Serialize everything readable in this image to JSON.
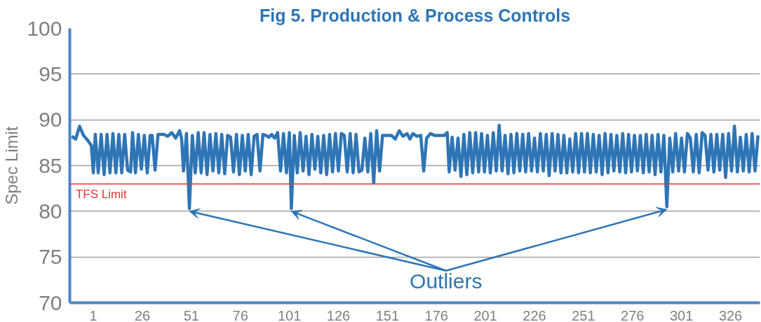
{
  "chart_data": {
    "type": "line",
    "title": "Fig 5. Production & Process Controls",
    "ylabel": "Spec Limit",
    "xlim": [
      -11,
      341
    ],
    "xticks": [
      1,
      26,
      51,
      76,
      101,
      126,
      151,
      176,
      201,
      226,
      251,
      276,
      301,
      326
    ],
    "ylim": [
      70,
      100
    ],
    "yticks": [
      70,
      75,
      80,
      85,
      90,
      95,
      100
    ],
    "grid": "y",
    "marker": "none",
    "line_style": "solid",
    "ref_lines": [
      {
        "axis": "y",
        "value": 83,
        "label": "TFS Limit",
        "color": "#ee3333"
      }
    ],
    "annotations": [
      {
        "text": "Outliers",
        "x": 102,
        "y": 80.3
      }
    ],
    "series": [
      {
        "color": "#2e75b6",
        "x": [
          -10,
          -8,
          -6,
          -4,
          -2,
          0,
          1,
          2,
          3.5,
          5,
          6.5,
          8,
          9.5,
          11,
          12.5,
          14,
          15.5,
          17,
          18.5,
          20,
          21,
          22.5,
          24,
          25.5,
          27,
          28.5,
          30,
          31,
          32.5,
          34,
          35,
          37,
          39,
          41,
          43,
          45,
          46,
          47,
          48.5,
          50,
          51.5,
          53,
          54.5,
          56,
          57.5,
          59,
          60.5,
          62,
          63.5,
          65,
          66.5,
          68,
          69.5,
          71,
          72.5,
          74,
          75.5,
          77,
          78.5,
          80,
          81.5,
          83,
          84.5,
          86,
          87.5,
          89,
          90.5,
          92,
          93.5,
          95,
          96.5,
          98,
          99.5,
          101,
          102,
          103.5,
          105,
          106.5,
          108,
          109.5,
          111,
          112.5,
          114,
          115.5,
          117,
          118.5,
          120,
          121.5,
          123,
          124.5,
          126,
          127.5,
          129,
          130.5,
          132,
          133.5,
          135,
          136.5,
          138,
          139.5,
          141,
          142.5,
          144,
          145.5,
          147,
          148.5,
          150,
          153,
          155,
          157,
          159,
          161,
          162.5,
          164,
          166,
          168,
          169.5,
          171,
          173,
          175,
          178,
          180,
          181.5,
          182.5,
          184,
          185.5,
          187,
          188.5,
          190,
          191.5,
          193,
          194.5,
          196,
          197.5,
          199,
          200.5,
          202,
          203.5,
          205,
          206.5,
          208,
          209.5,
          211,
          212.5,
          214,
          215.5,
          217,
          218.5,
          220,
          221.5,
          223,
          224.5,
          226,
          227.5,
          229,
          230.5,
          232,
          233.5,
          235,
          236.5,
          238,
          239.5,
          241,
          242.5,
          244,
          245.5,
          247,
          248.5,
          250,
          251.5,
          253,
          254.5,
          256,
          257.5,
          259,
          260.5,
          262,
          263.5,
          265,
          266.5,
          268,
          269.5,
          271,
          272.5,
          274,
          275.5,
          277,
          278.5,
          280,
          281.5,
          283,
          284.5,
          286,
          287.5,
          289,
          290.5,
          292,
          293.5,
          295,
          296.5,
          298,
          299.5,
          301,
          302.5,
          304,
          305.5,
          307,
          308.5,
          310,
          311.5,
          313,
          314.5,
          316,
          317.5,
          319,
          320.5,
          322,
          323.5,
          325,
          326.5,
          328,
          329.5,
          331,
          332.5,
          334,
          335.5,
          337,
          338.5,
          340
        ],
        "values": [
          88.2,
          87.9,
          89.3,
          88.3,
          87.8,
          87.2,
          84.2,
          88.4,
          84.2,
          88.4,
          84.0,
          88.4,
          84.2,
          88.5,
          84.2,
          88.4,
          84.2,
          88.4,
          84.5,
          84.3,
          88.6,
          84.2,
          88.4,
          84.6,
          88.3,
          84.2,
          88.3,
          88.3,
          84.5,
          88.4,
          88.4,
          88.4,
          88.2,
          88.6,
          88.0,
          88.8,
          88.0,
          84.4,
          88.5,
          80.3,
          88.3,
          84.2,
          88.6,
          84.2,
          88.6,
          84.0,
          88.4,
          84.4,
          88.5,
          84.2,
          88.4,
          84.1,
          88.3,
          88.1,
          84.3,
          88.4,
          84.0,
          88.3,
          84.4,
          88.4,
          84.0,
          88.2,
          88.4,
          84.4,
          88.4,
          88.3,
          88.1,
          88.4,
          88.0,
          88.6,
          84.4,
          88.5,
          84.2,
          88.6,
          80.3,
          88.3,
          84.2,
          88.6,
          84.4,
          88.2,
          84.0,
          88.4,
          84.6,
          88.2,
          84.2,
          88.3,
          84.0,
          88.4,
          84.3,
          88.5,
          84.4,
          88.5,
          88.3,
          84.3,
          88.5,
          84.2,
          88.4,
          84.3,
          84.5,
          88.0,
          84.3,
          88.5,
          83.1,
          88.8,
          84.4,
          88.3,
          88.3,
          88.3,
          87.9,
          88.8,
          88.2,
          88.5,
          87.9,
          88.5,
          88.2,
          88.3,
          84.4,
          88.0,
          88.5,
          88.3,
          88.3,
          88.3,
          88.6,
          84.3,
          88.1,
          84.5,
          88.0,
          83.8,
          88.4,
          84.0,
          88.6,
          84.2,
          88.6,
          84.3,
          88.5,
          84.3,
          88.3,
          84.2,
          88.6,
          84.4,
          89.4,
          84.4,
          88.3,
          84.1,
          88.4,
          84.2,
          88.5,
          84.4,
          88.4,
          84.3,
          88.5,
          84.4,
          88.0,
          84.3,
          88.5,
          84.4,
          88.4,
          83.9,
          88.5,
          84.4,
          88.4,
          84.2,
          88.3,
          84.2,
          87.9,
          84.3,
          88.5,
          84.2,
          88.5,
          84.3,
          88.5,
          84.2,
          88.4,
          84.3,
          88.3,
          84.0,
          88.5,
          84.2,
          88.4,
          84.4,
          88.3,
          84.3,
          88.5,
          84.2,
          88.4,
          84.3,
          88.3,
          84.4,
          88.3,
          84.2,
          88.4,
          84.3,
          88.3,
          84.0,
          88.4,
          84.3,
          88.3,
          80.5,
          88.0,
          84.3,
          88.5,
          84.4,
          88.0,
          84.3,
          88.5,
          88.0,
          84.3,
          88.4,
          84.2,
          88.6,
          88.3,
          84.5,
          88.4,
          84.3,
          88.4,
          84.5,
          88.4,
          83.7,
          88.5,
          84.4,
          89.3,
          84.3,
          88.1,
          84.4,
          88.4,
          84.3,
          88.5,
          84.4,
          88.3
        ]
      }
    ]
  }
}
